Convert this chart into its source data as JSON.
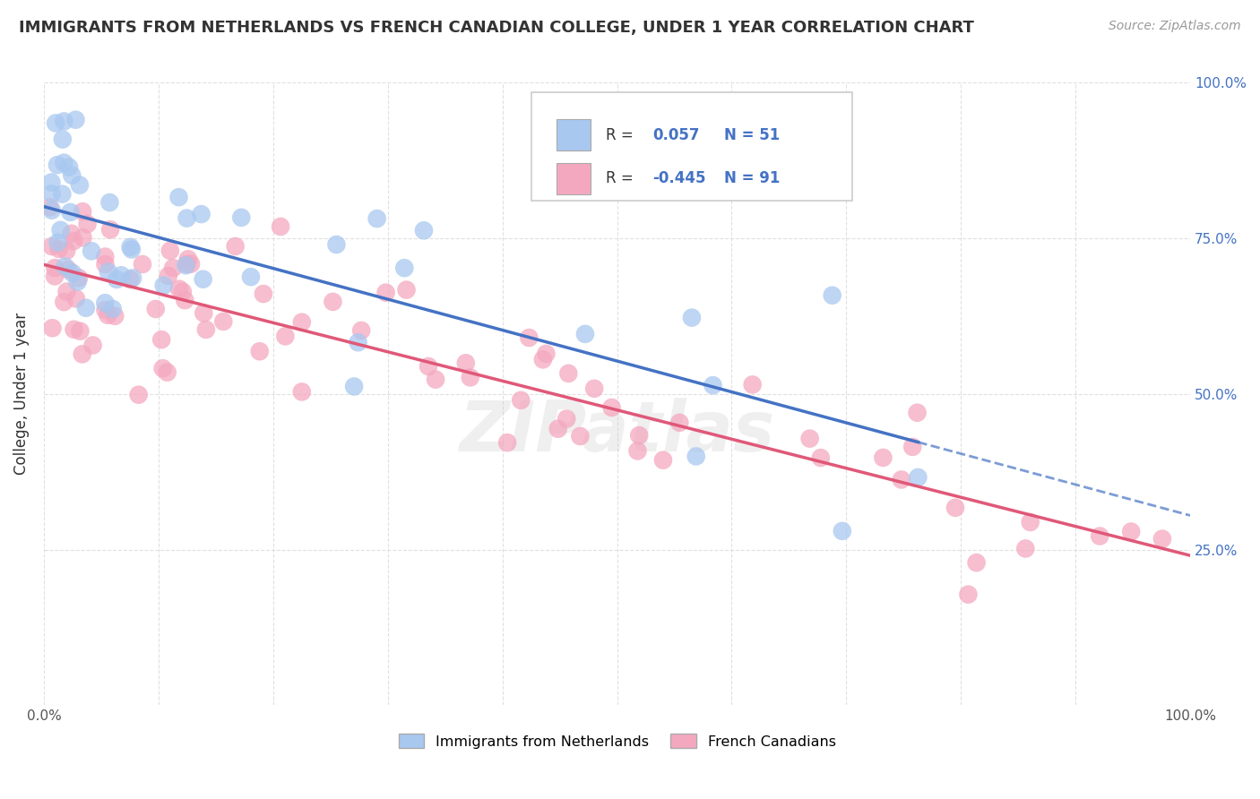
{
  "title": "IMMIGRANTS FROM NETHERLANDS VS FRENCH CANADIAN COLLEGE, UNDER 1 YEAR CORRELATION CHART",
  "source": "Source: ZipAtlas.com",
  "ylabel": "College, Under 1 year",
  "watermark": "ZIPatlas",
  "series1": {
    "label": "Immigrants from Netherlands",
    "R": 0.057,
    "N": 51,
    "color_scatter": "#a8c8f0",
    "color_line": "#4472c4",
    "color_legend": "#a8c8f0"
  },
  "series2": {
    "label": "French Canadians",
    "R": -0.445,
    "N": 91,
    "color_scatter": "#f4a8c0",
    "color_line": "#e05878",
    "color_legend": "#f4a8c0"
  },
  "xlim": [
    0.0,
    1.0
  ],
  "ylim": [
    0.0,
    1.0
  ],
  "background_color": "#ffffff",
  "grid_color": "#dddddd",
  "title_fontsize": 13,
  "source_fontsize": 10,
  "legend_color": "#4472c4",
  "text_color": "#333333"
}
